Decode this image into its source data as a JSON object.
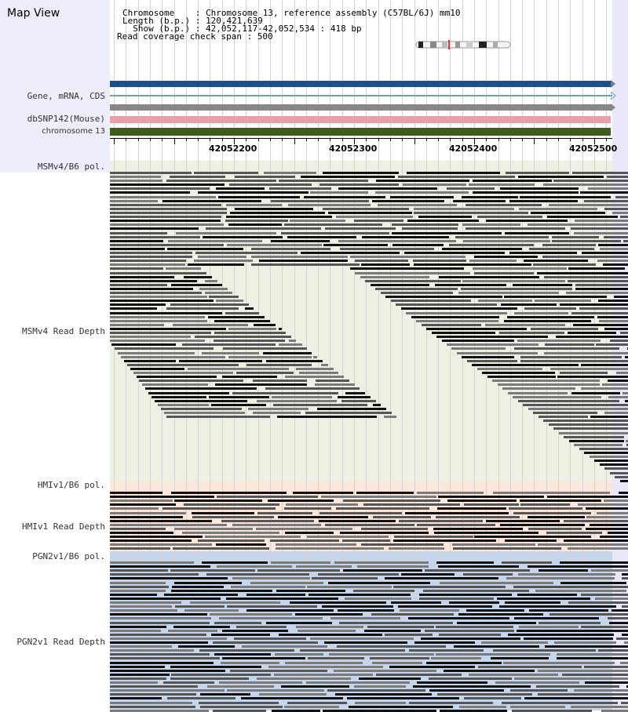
{
  "map_view": {
    "title": "Map View"
  },
  "info": {
    "line1": "Chromosome    : Chromosome 13, reference assembly (C57BL/6J) mm10",
    "line2": "Length (b.p.) : 120,421,639",
    "line3": "  Show (b.p.) : 42,052,117-42,052,534 : 418 bp",
    "line4": "Read coverage check span : 500"
  },
  "tracks": {
    "gene": "Gene, mRNA, CDS",
    "dbsnp": "dbSNP142(Mouse)",
    "chromosome": "chromosome 13",
    "msm_pol": "MSMv4/B6 pol.",
    "msm_depth": "MSMv4 Read Depth",
    "hmi_pol": "HMIv1/B6 pol.",
    "hmi_depth": "HMIv1 Read Depth",
    "pgn_pol": "PGN2v1/B6 pol.",
    "pgn_depth": "PGN2v1 Read Depth"
  },
  "ruler": {
    "labels": [
      "42052200",
      "42052300",
      "42052400",
      "42052500"
    ]
  },
  "colors": {
    "gene_bar": "#1f4e8c",
    "gray_bar": "#888888",
    "dbsnp_bar": "#e8a0a8",
    "chrom_bar": "#3d5c1e",
    "msm_bg": "#edf1e3",
    "hmi_bg": "#fbe7dc",
    "pgn_bg": "#c5d6ec"
  }
}
